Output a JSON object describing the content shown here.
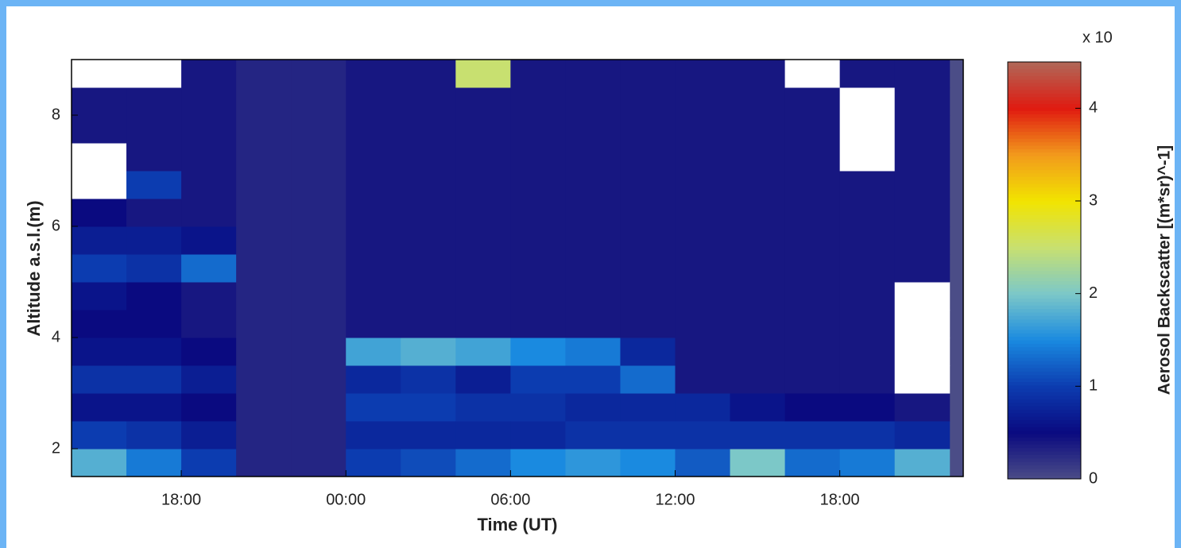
{
  "chart_data": {
    "type": "heatmap",
    "xlabel": "Time (UT)",
    "ylabel": "Altitude a.s.l.(m)",
    "colorbar_label": "Aerosol Backscatter [(m*sr)^-1]",
    "colorbar_multiplier": "x 10",
    "x": [
      15,
      17,
      19,
      21,
      23,
      25,
      27,
      29,
      31,
      33,
      35,
      37,
      39,
      41,
      43,
      45
    ],
    "y": [
      1.75,
      2.25,
      2.75,
      3.25,
      3.75,
      4.25,
      4.75,
      5.25,
      5.75,
      6.25,
      6.75,
      7.25,
      7.75,
      8.25,
      8.75
    ],
    "z": [
      [
        1.8,
        1.4,
        1.0,
        0.3,
        0.3,
        1.0,
        1.1,
        1.3,
        1.5,
        1.6,
        1.5,
        1.2,
        2.0,
        1.3,
        1.4,
        1.8
      ],
      [
        1.0,
        0.9,
        0.7,
        0.3,
        0.3,
        0.8,
        0.8,
        0.8,
        0.8,
        0.9,
        0.9,
        0.9,
        0.9,
        0.9,
        0.9,
        0.8
      ],
      [
        0.6,
        0.6,
        0.5,
        0.3,
        0.3,
        1.0,
        1.0,
        0.9,
        0.9,
        0.8,
        0.8,
        0.8,
        0.6,
        0.5,
        0.5,
        0.4
      ],
      [
        0.9,
        0.9,
        0.7,
        0.3,
        0.3,
        0.8,
        0.9,
        0.7,
        1.0,
        1.0,
        1.3,
        0.4,
        0.4,
        0.4,
        0.4,
        null
      ],
      [
        0.6,
        0.6,
        0.5,
        0.3,
        0.3,
        1.7,
        1.8,
        1.7,
        1.5,
        1.4,
        0.8,
        0.4,
        0.4,
        0.4,
        0.4,
        null
      ],
      [
        0.5,
        0.5,
        0.4,
        0.3,
        0.3,
        0.4,
        0.4,
        0.4,
        0.4,
        0.4,
        0.4,
        0.4,
        0.4,
        0.4,
        0.4,
        null
      ],
      [
        0.6,
        0.5,
        0.4,
        0.3,
        0.3,
        0.4,
        0.4,
        0.4,
        0.4,
        0.4,
        0.4,
        0.4,
        0.4,
        0.4,
        0.4,
        null
      ],
      [
        1.0,
        0.9,
        1.3,
        0.3,
        0.3,
        0.4,
        0.4,
        0.4,
        0.4,
        0.4,
        0.4,
        0.4,
        0.4,
        0.4,
        0.4,
        0.4
      ],
      [
        0.7,
        0.7,
        0.6,
        0.3,
        0.3,
        0.4,
        0.4,
        0.4,
        0.4,
        0.4,
        0.4,
        0.4,
        0.4,
        0.4,
        0.4,
        0.4
      ],
      [
        0.5,
        0.4,
        0.4,
        0.3,
        0.3,
        0.4,
        0.4,
        0.4,
        0.4,
        0.4,
        0.4,
        0.4,
        0.4,
        0.4,
        0.4,
        0.4
      ],
      [
        null,
        1.0,
        0.4,
        0.3,
        0.3,
        0.4,
        0.4,
        0.4,
        0.4,
        0.4,
        0.4,
        0.4,
        0.4,
        0.4,
        0.4,
        0.4
      ],
      [
        null,
        0.4,
        0.4,
        0.3,
        0.3,
        0.4,
        0.4,
        0.4,
        0.4,
        0.4,
        0.4,
        0.4,
        0.4,
        0.4,
        null,
        0.4
      ],
      [
        0.4,
        0.4,
        0.4,
        0.3,
        0.3,
        0.4,
        0.4,
        0.4,
        0.4,
        0.4,
        0.4,
        0.4,
        0.4,
        0.4,
        null,
        0.4
      ],
      [
        0.4,
        0.4,
        0.4,
        0.3,
        0.3,
        0.4,
        0.4,
        0.4,
        0.4,
        0.4,
        0.4,
        0.4,
        0.4,
        0.4,
        null,
        0.4
      ],
      [
        null,
        null,
        0.4,
        0.3,
        0.3,
        0.4,
        0.4,
        2.5,
        0.4,
        0.4,
        0.4,
        0.4,
        0.4,
        null,
        0.4,
        0.4
      ]
    ],
    "xlim": [
      14,
      46.5
    ],
    "xticks": [
      {
        "value": 18,
        "label": "18:00"
      },
      {
        "value": 24,
        "label": "00:00"
      },
      {
        "value": 30,
        "label": "06:00"
      },
      {
        "value": 36,
        "label": "12:00"
      },
      {
        "value": 42,
        "label": "18:00"
      }
    ],
    "ylim": [
      1.5,
      9
    ],
    "yticks": [
      2,
      4,
      6,
      8
    ],
    "clim": [
      0,
      4.5
    ],
    "cticks": [
      0,
      1,
      2,
      3,
      4
    ],
    "colormap": [
      "#4b4d87",
      "#0a0a80",
      "#0c3cb0",
      "#1a8ae0",
      "#7cc8c8",
      "#c8e070",
      "#f2e400",
      "#f29a1c",
      "#e01a10",
      "#b06858"
    ]
  }
}
